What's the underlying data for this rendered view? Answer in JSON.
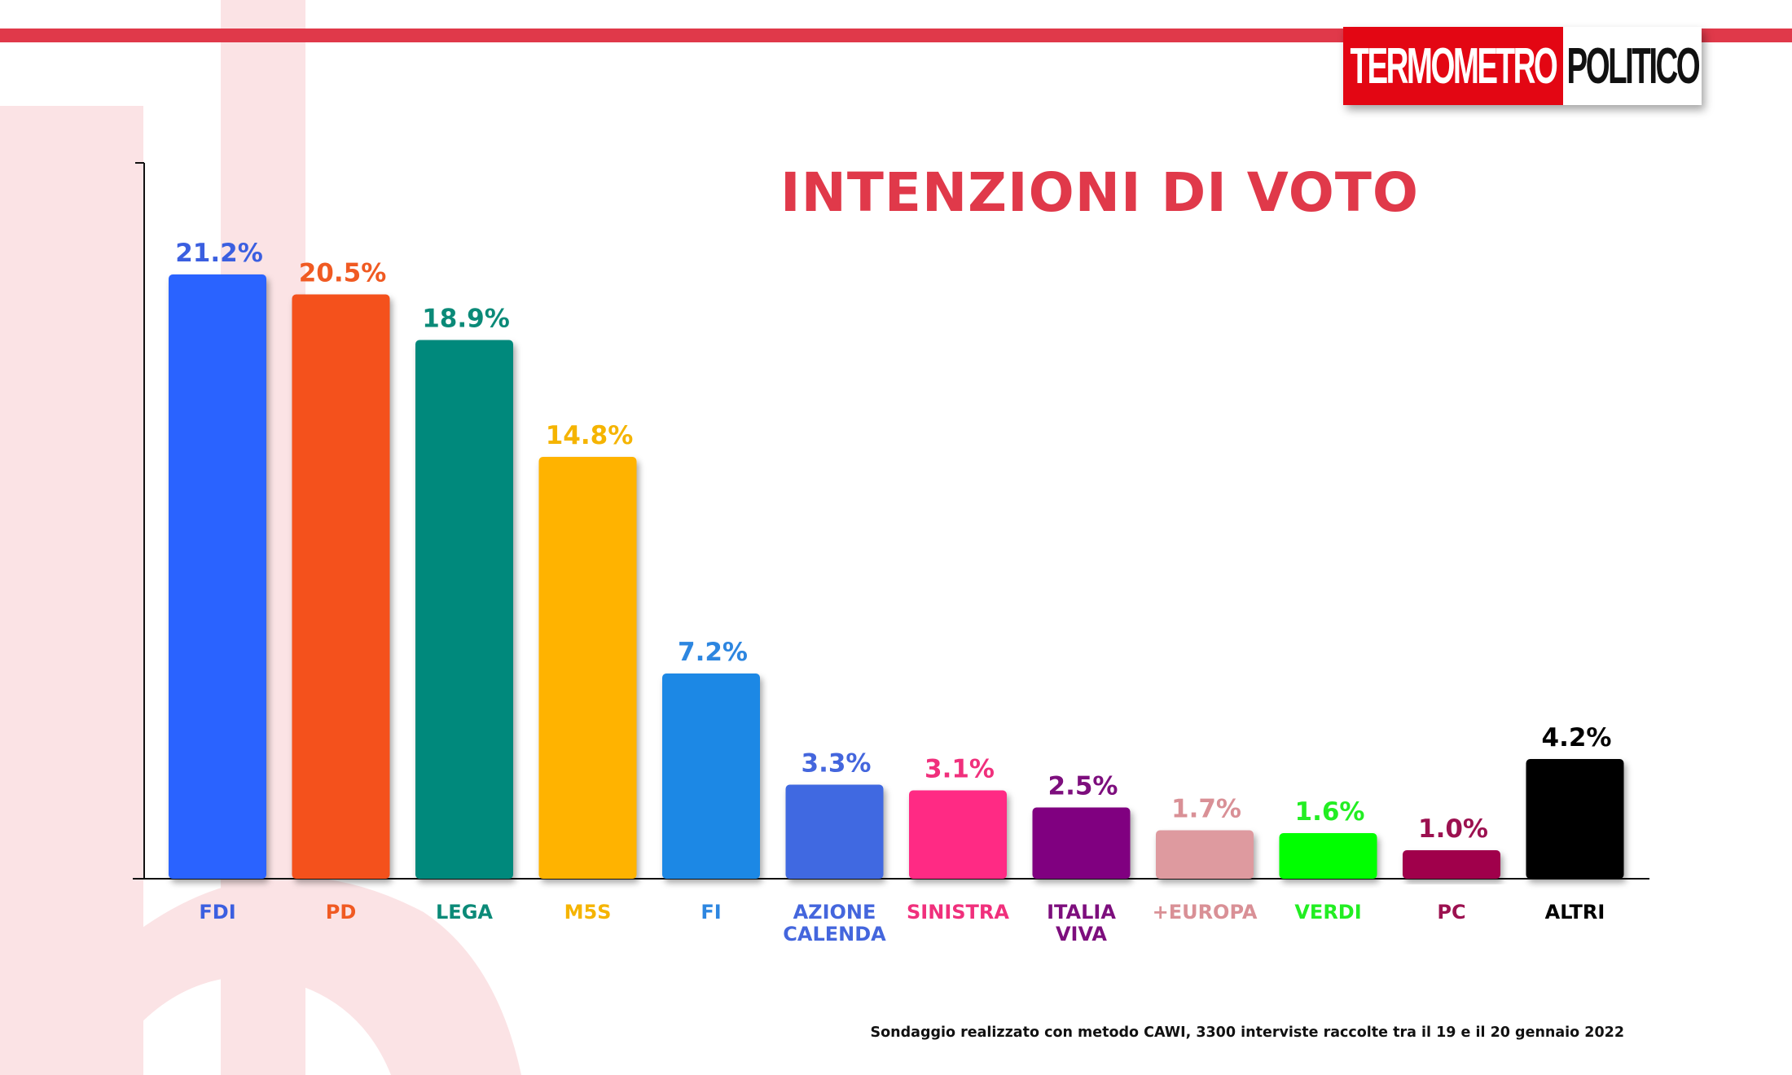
{
  "logo": {
    "part1": "TERMOMETRO",
    "part2": "POLITICO",
    "color": "#E30613"
  },
  "title": "INTENZIONI DI VOTO",
  "footnote": "Sondaggio realizzato con metodo CAWI, 3300 interviste raccolte tra il 19 e il 20 gennaio 2022",
  "colors": {
    "accent": "#E0394A",
    "watermark": "#FBE3E5"
  },
  "chart_data": {
    "type": "bar",
    "title": "INTENZIONI DI VOTO",
    "xlabel": "",
    "ylabel": "",
    "ylim": [
      0,
      24
    ],
    "grid": false,
    "legend": "none",
    "categories": [
      [
        "FDI"
      ],
      [
        "PD"
      ],
      [
        "LEGA"
      ],
      [
        "M5S"
      ],
      [
        "FI"
      ],
      [
        "AZIONE",
        "CALENDA"
      ],
      [
        "SINISTRA"
      ],
      [
        "ITALIA",
        "VIVA"
      ],
      [
        "+EUROPA"
      ],
      [
        "VERDI"
      ],
      [
        "PC"
      ],
      [
        "ALTRI"
      ]
    ],
    "values": [
      21.2,
      20.5,
      18.9,
      14.8,
      7.2,
      3.3,
      3.1,
      2.5,
      1.7,
      1.6,
      1.0,
      4.2
    ],
    "value_labels": [
      "21.2%",
      "20.5%",
      "18.9%",
      "14.8%",
      "7.2%",
      "3.3%",
      "3.1%",
      "2.5%",
      "1.7%",
      "1.6%",
      "1.0%",
      "4.2%"
    ],
    "bar_colors": [
      "#2B63FF",
      "#F4511E",
      "#00897B",
      "#FFB300",
      "#1E88E5",
      "#4169E1",
      "#FF2A84",
      "#800080",
      "#DE9A9F",
      "#00FF00",
      "#A0064C",
      "#000000"
    ],
    "label_colors": [
      "#3B5FE0",
      "#F05A22",
      "#0B8A78",
      "#F5B400",
      "#2D86E0",
      "#4466DD",
      "#F0307C",
      "#7D0E7D",
      "#D99096",
      "#22EE22",
      "#9C1150",
      "#000000"
    ]
  }
}
